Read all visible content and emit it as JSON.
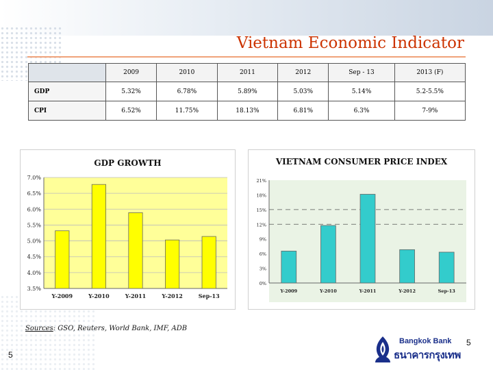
{
  "title": "Vietnam Economic Indicator",
  "table": {
    "headers": [
      "",
      "2009",
      "2010",
      "2011",
      "2012",
      "Sep - 13",
      "2013 (F)"
    ],
    "rows": [
      {
        "label": "GDP",
        "values": [
          "5.32%",
          "6.78%",
          "5.89%",
          "5.03%",
          "5.14%",
          "5.2-5.5%"
        ]
      },
      {
        "label": "CPI",
        "values": [
          "6.52%",
          "11.75%",
          "18.13%",
          "6.81%",
          "6.3%",
          "7-9%"
        ]
      }
    ]
  },
  "chart_data": [
    {
      "type": "bar",
      "title": "GDP GROWTH",
      "categories": [
        "Y-2009",
        "Y-2010",
        "Y-2011",
        "Y-2012",
        "Sep-13"
      ],
      "values": [
        5.32,
        6.78,
        5.89,
        5.03,
        5.14
      ],
      "ylim": [
        3.5,
        7.0
      ],
      "yticks": [
        "3.5%",
        "4.0%",
        "4.5%",
        "5.0%",
        "5.5%",
        "6.0%",
        "6.5%",
        "7.0%"
      ],
      "bar_color": "#ffff00",
      "plot_background": "#ffff99",
      "grid": true
    },
    {
      "type": "bar",
      "title": "VIETNAM CONSUMER PRICE INDEX",
      "categories": [
        "Y-2009",
        "Y-2010",
        "Y-2011",
        "Y-2012",
        "Sep-13"
      ],
      "values": [
        6.52,
        11.75,
        18.13,
        6.81,
        6.3
      ],
      "ylim": [
        0,
        21
      ],
      "yticks": [
        "0%",
        "3%",
        "6%",
        "9%",
        "12%",
        "15%",
        "18%",
        "21%"
      ],
      "reference_lines": [
        12,
        15
      ],
      "bar_color": "#33cccc",
      "plot_background": "#eaf3e5",
      "grid": false
    }
  ],
  "sources": {
    "label": "Sources",
    "text": ": GSO, Reuters, World Bank, IMF, ADB"
  },
  "page_number": "5",
  "logo": {
    "en": "Bangkok Bank",
    "th": "ธนาคารกรุงเทพ"
  },
  "colors": {
    "title": "#cc3300",
    "brand": "#1a2f8a"
  }
}
